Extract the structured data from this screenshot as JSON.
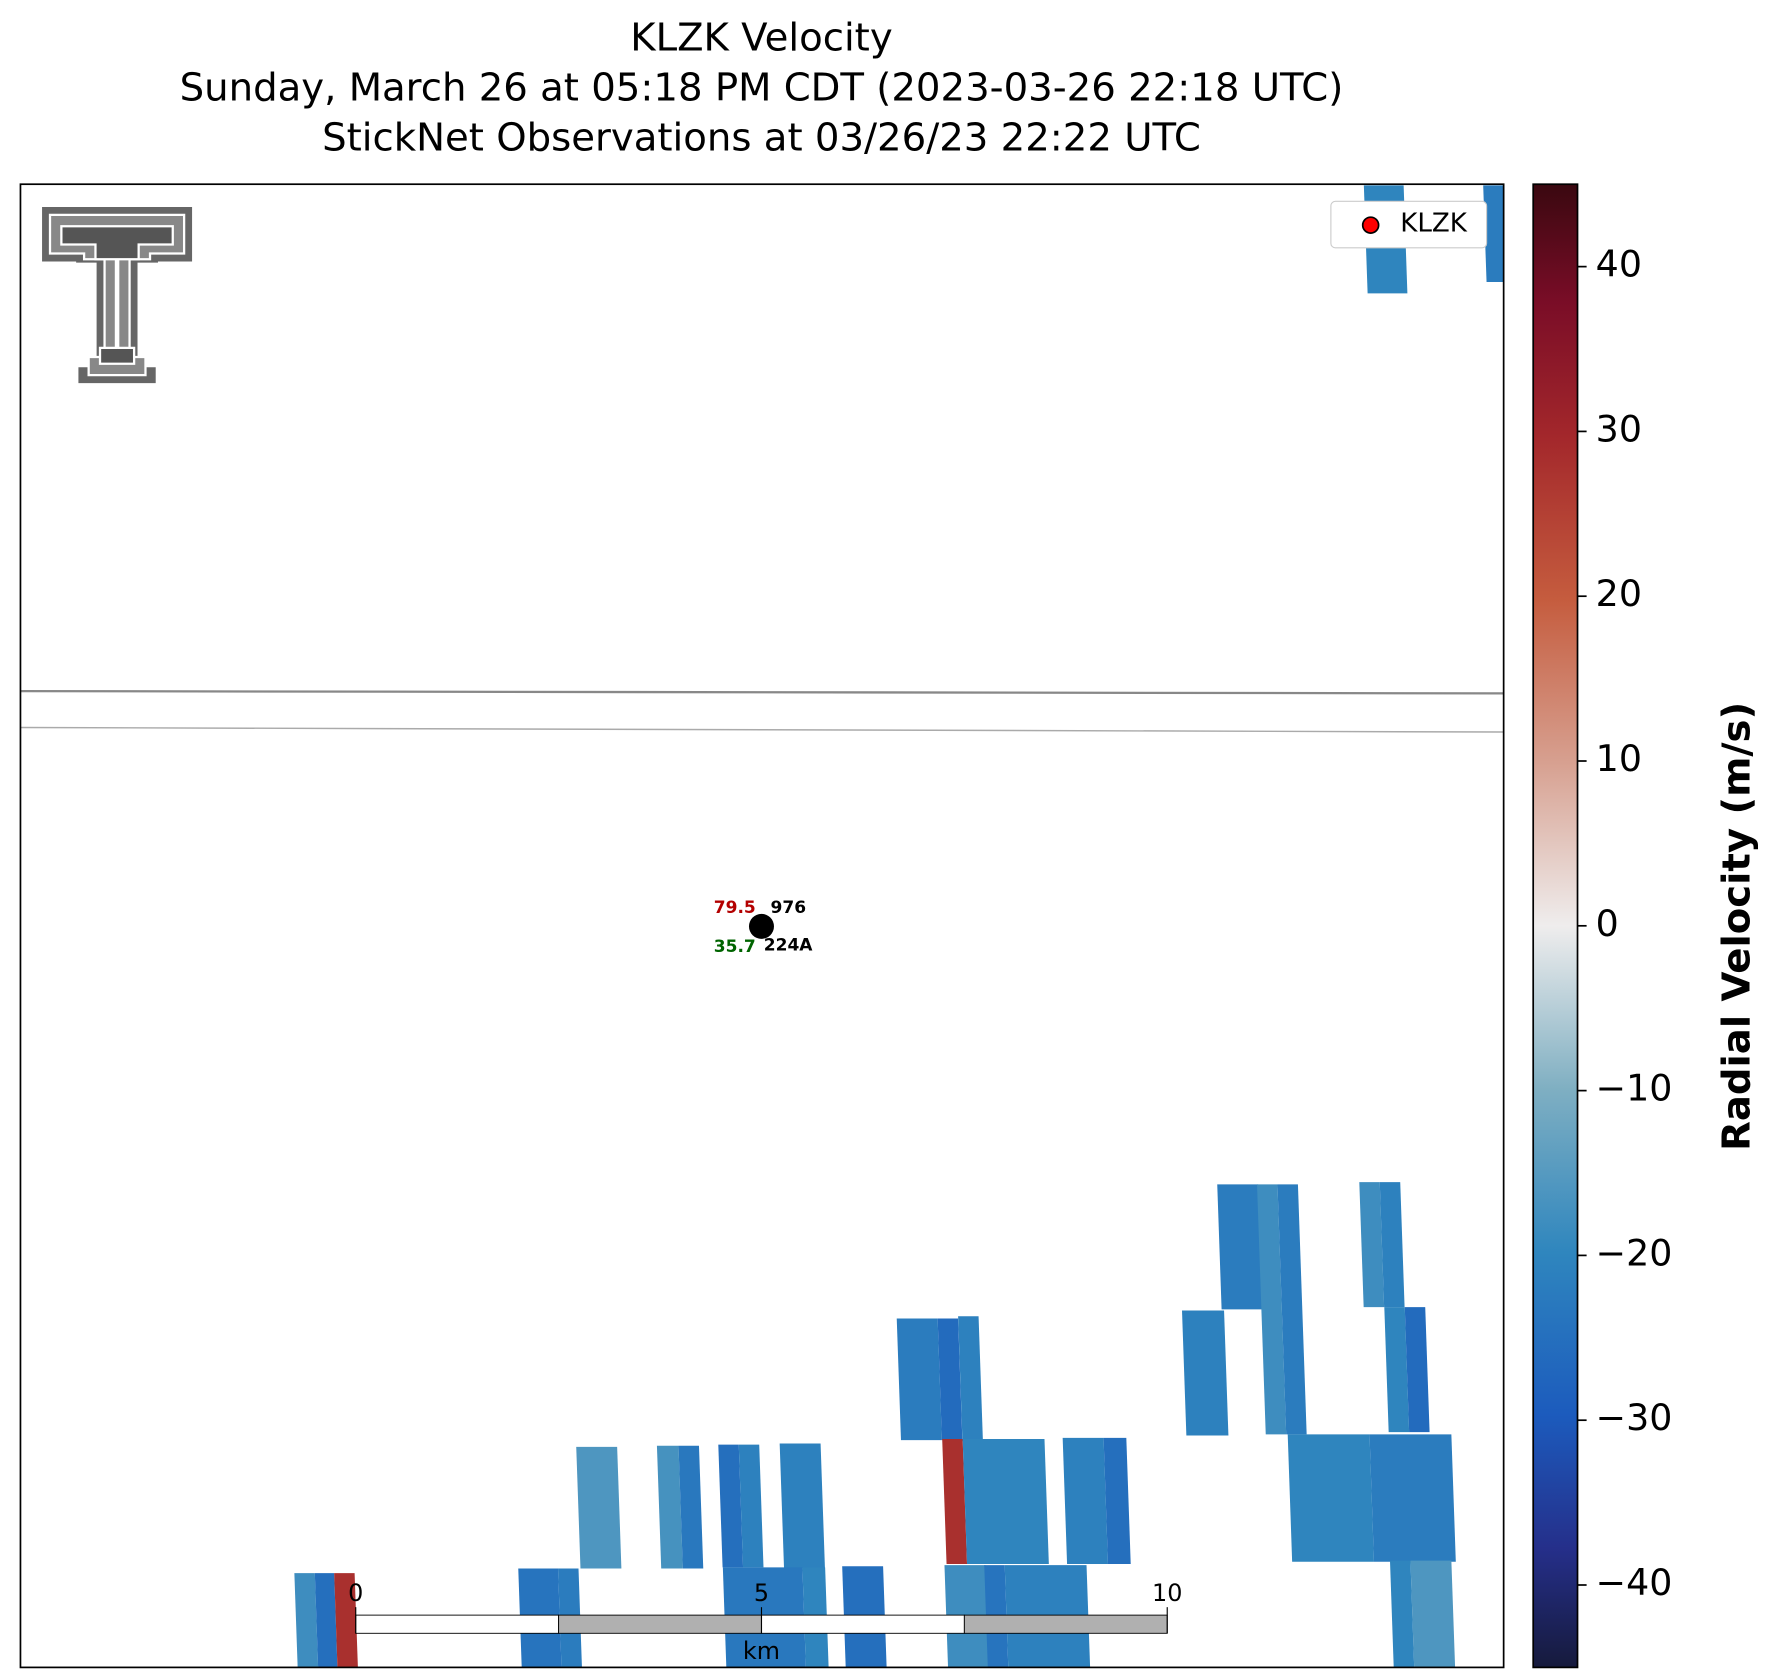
{
  "title": [
    "KLZK Velocity",
    "Sunday, March 26 at 05:18 PM CDT (2023-03-26 22:18 UTC)",
    "StickNet Observations at 03/26/23 22:22 UTC"
  ],
  "legend": [
    "KLZK"
  ],
  "colorbar": {
    "label": "Radial Velocity (m/s)",
    "lim": [
      -45,
      45
    ],
    "ticks": [
      {
        "value": -40,
        "label": "−40"
      },
      {
        "value": -30,
        "label": "−30"
      },
      {
        "value": -20,
        "label": "−20"
      },
      {
        "value": -10,
        "label": "−10"
      },
      0,
      10,
      20,
      30,
      40
    ]
  },
  "station": {
    "id": "224A",
    "temperature": 79.5,
    "dewpoint": 35.7,
    "pressure": 976
  },
  "scale_bar": {
    "ticks": [
      0,
      5,
      10
    ],
    "unit": "km"
  },
  "radar_cells": [
    -20,
    -22,
    -18,
    -25,
    28,
    -24,
    -22,
    -16,
    -17,
    -23,
    -25,
    -21,
    -21,
    -23,
    -20,
    -25,
    -22,
    -26,
    -21,
    28,
    -20,
    -21,
    -25,
    -18,
    -24,
    -21,
    -21,
    -22,
    -18,
    -22,
    -18,
    -21,
    -20,
    -26,
    -20,
    -22,
    -20,
    -16
  ]
}
